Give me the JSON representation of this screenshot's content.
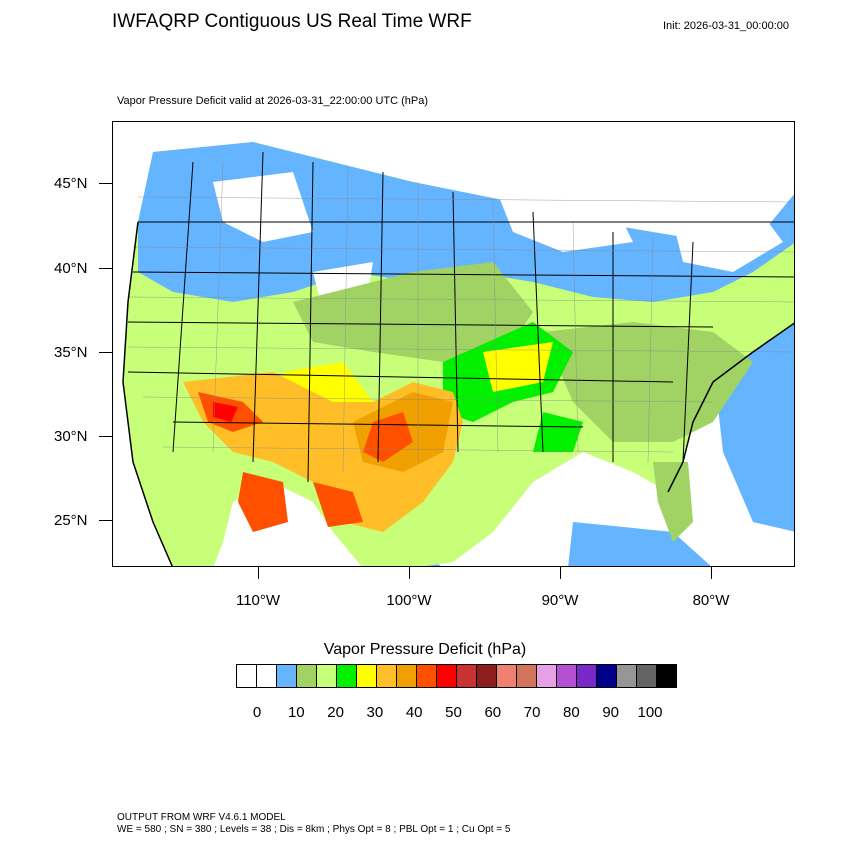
{
  "header": {
    "title": "IWFAQRP Contiguous US Real Time WRF",
    "init": "Init: 2026-03-31_00:00:00",
    "subtitle": "Vapor Pressure Deficit valid at 2026-03-31_22:00:00 UTC   (hPa)"
  },
  "map": {
    "lat_labels": [
      "45°N",
      "40°N",
      "35°N",
      "30°N",
      "25°N"
    ],
    "lon_labels": [
      "110°W",
      "100°W",
      "90°W",
      "80°W"
    ]
  },
  "legend": {
    "title": "Vapor Pressure Deficit  (hPa)",
    "colors": [
      "#ffffff",
      "#ffffff",
      "#64b4ff",
      "#a0d264",
      "#c8ff78",
      "#00f000",
      "#ffff00",
      "#ffbe28",
      "#f0a000",
      "#ff5000",
      "#ff0000",
      "#c83232",
      "#8c1e1e",
      "#f08070",
      "#d2735a",
      "#e6a0e6",
      "#b450d2",
      "#7828c8",
      "#00008c",
      "#969696",
      "#646464",
      "#000000"
    ],
    "tick_labels": [
      "0",
      "10",
      "20",
      "30",
      "40",
      "50",
      "60",
      "70",
      "80",
      "90",
      "100"
    ]
  },
  "footer": {
    "line1": "OUTPUT FROM WRF V4.6.1 MODEL",
    "line2": "WE = 580 ; SN = 380 ; Levels = 38 ; Dis = 8km ; Phys Opt = 8 ; PBL Opt = 1 ; Cu Opt = 5"
  }
}
